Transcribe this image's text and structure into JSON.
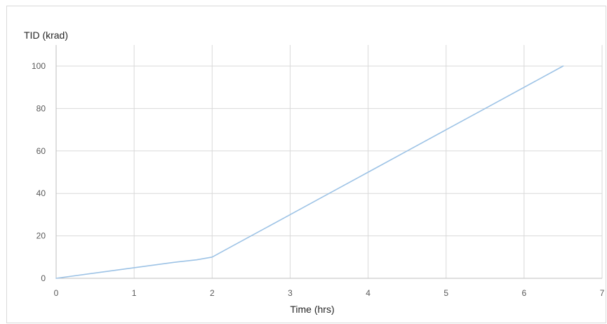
{
  "chart_data": {
    "type": "line",
    "title": "",
    "xlabel": "Time (hrs)",
    "ylabel": "TID (krad)",
    "xlim": [
      0,
      7
    ],
    "ylim": [
      0,
      100
    ],
    "x_ticks": [
      "0",
      "1",
      "2",
      "3",
      "4",
      "5",
      "6",
      "7"
    ],
    "y_ticks": [
      "0",
      "20",
      "40",
      "60",
      "80",
      "100"
    ],
    "grid": true,
    "legend": "none",
    "series": [
      {
        "color": "#9dc3e6",
        "x": [
          0,
          0.5,
          1,
          1.5,
          1.8,
          2.0,
          2.2,
          2.5,
          3,
          3.5,
          4,
          4.5,
          5,
          5.5,
          6,
          6.5
        ],
        "y": [
          0,
          2.5,
          5,
          7.5,
          8.7,
          10,
          14,
          20,
          30,
          40,
          50,
          60,
          70,
          80,
          90,
          100
        ]
      }
    ],
    "colors": {
      "grid": "#d9d9d9",
      "axis": "#bfbfbf"
    }
  }
}
